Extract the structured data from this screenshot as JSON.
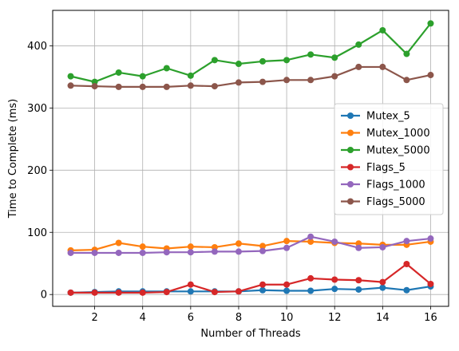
{
  "chart_data": {
    "type": "line",
    "title": "",
    "xlabel": "Number of Threads",
    "ylabel": "Time to Complete (ms)",
    "x": [
      1,
      2,
      3,
      4,
      5,
      6,
      7,
      8,
      9,
      10,
      11,
      12,
      13,
      14,
      15,
      16
    ],
    "xlim": [
      0.25,
      16.75
    ],
    "ylim": [
      -19,
      457
    ],
    "xticks": [
      2,
      4,
      6,
      8,
      10,
      12,
      14,
      16
    ],
    "yticks": [
      0,
      100,
      200,
      300,
      400
    ],
    "grid": true,
    "legend_position": "center-right",
    "series": [
      {
        "name": "Mutex_5",
        "color": "#1f77b4",
        "values": [
          3,
          4,
          5,
          5,
          5,
          5,
          5,
          5,
          7,
          6,
          6,
          9,
          8,
          11,
          7,
          13
        ]
      },
      {
        "name": "Mutex_1000",
        "color": "#ff7f0e",
        "values": [
          71,
          72,
          83,
          77,
          74,
          77,
          76,
          82,
          78,
          86,
          85,
          83,
          82,
          80,
          80,
          85
        ]
      },
      {
        "name": "Mutex_5000",
        "color": "#2ca02c",
        "values": [
          351,
          342,
          357,
          351,
          364,
          352,
          377,
          371,
          375,
          377,
          386,
          381,
          402,
          425,
          387,
          436
        ]
      },
      {
        "name": "Flags_5",
        "color": "#d62728",
        "values": [
          3,
          3,
          3,
          3,
          4,
          16,
          4,
          5,
          16,
          16,
          26,
          24,
          23,
          20,
          49,
          17
        ]
      },
      {
        "name": "Flags_1000",
        "color": "#9467bd",
        "values": [
          67,
          67,
          67,
          67,
          68,
          68,
          69,
          69,
          70,
          75,
          93,
          85,
          75,
          76,
          86,
          90
        ]
      },
      {
        "name": "Flags_5000",
        "color": "#8c564b",
        "values": [
          336,
          335,
          334,
          334,
          334,
          336,
          335,
          341,
          342,
          345,
          345,
          351,
          366,
          366,
          345,
          353
        ]
      }
    ]
  }
}
